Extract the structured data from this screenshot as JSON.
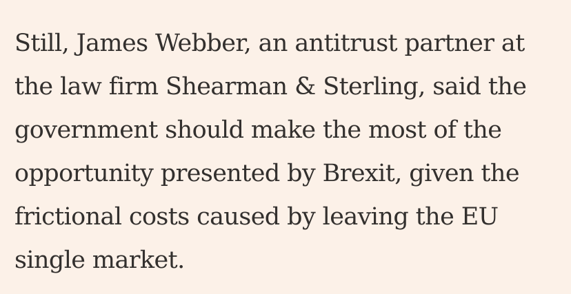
{
  "article": {
    "paragraph_lines": [
      "Still, James Webber, an antitrust partner at",
      "the law firm Shearman & Sterling, said the",
      "government should make the most of the",
      "opportunity presented by Brexit, given the",
      "frictional costs caused by leaving the EU",
      "single market."
    ]
  },
  "colors": {
    "background": "#fcf1e8",
    "text": "#33302e"
  }
}
